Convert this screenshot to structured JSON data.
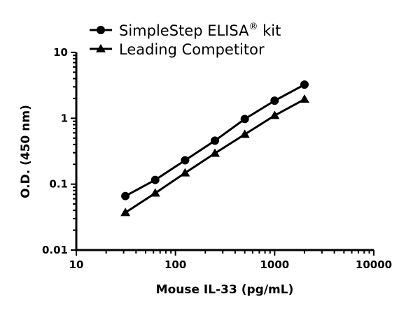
{
  "chart_data": {
    "type": "line",
    "title": "",
    "xlabel": "Mouse IL-33 (pg/mL)",
    "ylabel": "O.D. (450 nm)",
    "xscale": "log",
    "yscale": "log",
    "xlim": [
      10,
      10000
    ],
    "ylim": [
      0.01,
      10
    ],
    "xticks": [
      "10",
      "100",
      "1000",
      "10000"
    ],
    "yticks": [
      "0.01",
      "0.1",
      "1",
      "10"
    ],
    "grid": false,
    "legend_position": "top-left",
    "x": [
      31.25,
      62.5,
      125,
      250,
      500,
      1000,
      2000
    ],
    "series": [
      {
        "name": "SimpleStep ELISA",
        "name_sup": "®",
        "name_suffix": " kit",
        "marker": "circle",
        "color": "#000000",
        "values": [
          0.066,
          0.116,
          0.23,
          0.457,
          0.975,
          1.85,
          3.24
        ]
      },
      {
        "name": "Leading Competitor",
        "marker": "triangle",
        "color": "#000000",
        "values": [
          0.037,
          0.073,
          0.148,
          0.294,
          0.57,
          1.1,
          1.94
        ]
      }
    ]
  }
}
